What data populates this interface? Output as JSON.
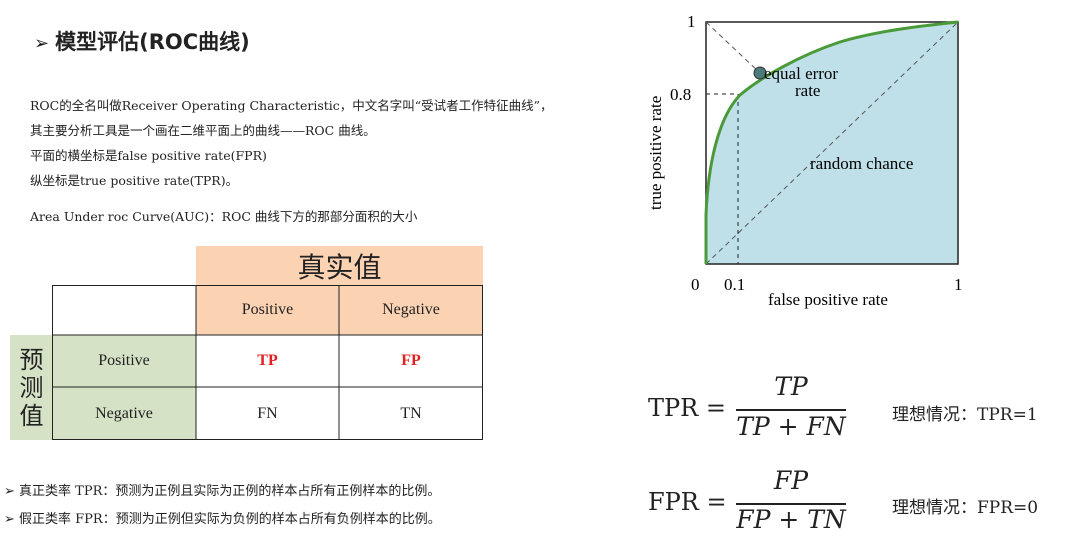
{
  "title": {
    "bullet": "➢",
    "text": "模型评估(ROC曲线)"
  },
  "intro": [
    "ROC的全名叫做Receiver Operating Characteristic，中文名字叫“受试者工作特征曲线”，",
    "其主要分析工具是一个画在二维平面上的曲线——ROC 曲线。",
    "平面的横坐标是false positive rate(FPR)",
    "纵坐标是true positive rate(TPR)。"
  ],
  "auc": "Area Under roc Curve(AUC)：ROC 曲线下方的那部分面积的大小",
  "table": {
    "actual_header": "真实值",
    "predicted_header": [
      "预",
      "测",
      "值"
    ],
    "col_headers": [
      "Positive",
      "Negative"
    ],
    "rows": [
      {
        "label": "Positive",
        "cells": [
          "TP",
          "FP"
        ]
      },
      {
        "label": "Negative",
        "cells": [
          "FN",
          "TN"
        ]
      }
    ]
  },
  "bullets": [
    "➢ 真正类率 TPR：预测为正例且实际为正例的样本占所有正例样本的比例。",
    "➢ 假正类率 FPR：预测为正例但实际为负例的样本占所有负例样本的比例。"
  ],
  "roc": {
    "xlabel": "false positive rate",
    "ylabel": "true positive rate",
    "ticks": {
      "y_top": "1",
      "y_08": "0.8",
      "origin": "0",
      "x_01": "0.1",
      "x_right": "1"
    },
    "annotations": {
      "eer1": "equal error",
      "eer2": "rate",
      "random": "random chance"
    },
    "colors": {
      "fill": "#bfe0e8",
      "curve": "#4a9a3a",
      "point": "#4a7a7a"
    }
  },
  "formulas": [
    {
      "lhs": "TPR =",
      "num": "TP",
      "den": "TP + FN",
      "ideal": "理想情况：TPR=1"
    },
    {
      "lhs": "FPR =",
      "num": "FP",
      "den": "FP + TN",
      "ideal": "理想情况：FPR=0"
    }
  ]
}
